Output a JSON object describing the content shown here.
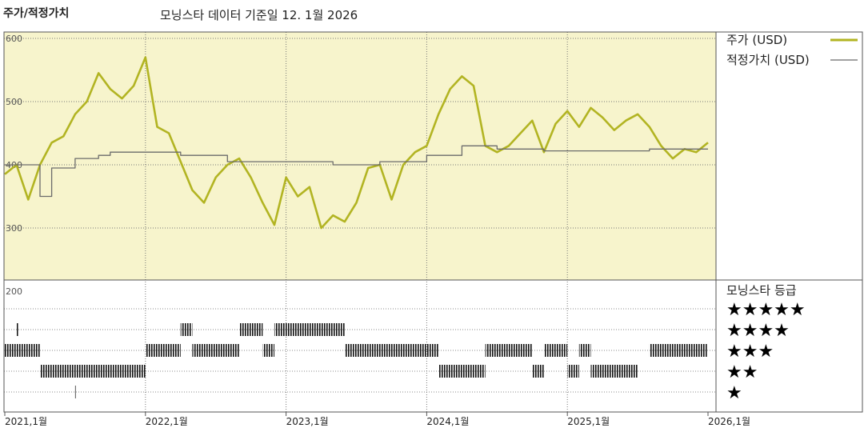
{
  "title": "주가/적정가치",
  "subtitle": "모닝스타 데이터 기준일 12. 1월 2026",
  "chart_data": {
    "type": "line",
    "y_ticks": [
      "600",
      "500",
      "400",
      "300",
      "200"
    ],
    "ylim": [
      200,
      600
    ],
    "x_ticks": [
      "2021,1월",
      "2022,1월",
      "2023,1월",
      "2024,1월",
      "2025,1월",
      "2026,1월"
    ],
    "xlim": [
      "2021-01",
      "2026-01"
    ],
    "grid": true,
    "legend_position": "right",
    "series": [
      {
        "name": "주가 (USD)",
        "color": "#b2b422",
        "points": [
          [
            "2021-01",
            385
          ],
          [
            "2021-02",
            400
          ],
          [
            "2021-03",
            345
          ],
          [
            "2021-04",
            400
          ],
          [
            "2021-05",
            435
          ],
          [
            "2021-06",
            445
          ],
          [
            "2021-07",
            480
          ],
          [
            "2021-08",
            500
          ],
          [
            "2021-09",
            545
          ],
          [
            "2021-10",
            520
          ],
          [
            "2021-11",
            505
          ],
          [
            "2021-12",
            525
          ],
          [
            "2022-01",
            570
          ],
          [
            "2022-02",
            460
          ],
          [
            "2022-03",
            450
          ],
          [
            "2022-04",
            405
          ],
          [
            "2022-05",
            360
          ],
          [
            "2022-06",
            340
          ],
          [
            "2022-07",
            380
          ],
          [
            "2022-08",
            400
          ],
          [
            "2022-09",
            410
          ],
          [
            "2022-10",
            380
          ],
          [
            "2022-11",
            340
          ],
          [
            "2022-12",
            305
          ],
          [
            "2023-01",
            380
          ],
          [
            "2023-02",
            350
          ],
          [
            "2023-03",
            365
          ],
          [
            "2023-04",
            300
          ],
          [
            "2023-05",
            320
          ],
          [
            "2023-06",
            310
          ],
          [
            "2023-07",
            340
          ],
          [
            "2023-08",
            395
          ],
          [
            "2023-09",
            400
          ],
          [
            "2023-10",
            345
          ],
          [
            "2023-11",
            400
          ],
          [
            "2023-12",
            420
          ],
          [
            "2024-01",
            430
          ],
          [
            "2024-02",
            480
          ],
          [
            "2024-03",
            520
          ],
          [
            "2024-04",
            540
          ],
          [
            "2024-05",
            525
          ],
          [
            "2024-06",
            430
          ],
          [
            "2024-07",
            420
          ],
          [
            "2024-08",
            430
          ],
          [
            "2024-09",
            450
          ],
          [
            "2024-10",
            470
          ],
          [
            "2024-11",
            420
          ],
          [
            "2024-12",
            465
          ],
          [
            "2025-01",
            485
          ],
          [
            "2025-02",
            460
          ],
          [
            "2025-03",
            490
          ],
          [
            "2025-04",
            475
          ],
          [
            "2025-05",
            455
          ],
          [
            "2025-06",
            470
          ],
          [
            "2025-07",
            480
          ],
          [
            "2025-08",
            460
          ],
          [
            "2025-09",
            430
          ],
          [
            "2025-10",
            410
          ],
          [
            "2025-11",
            425
          ],
          [
            "2025-12",
            420
          ],
          [
            "2026-01",
            435
          ]
        ]
      },
      {
        "name": "적정가치 (USD)",
        "color": "#6b6b6b",
        "points": [
          [
            "2021-01",
            400
          ],
          [
            "2021-04",
            400
          ],
          [
            "2021-04",
            350
          ],
          [
            "2021-05",
            350
          ],
          [
            "2021-05",
            395
          ],
          [
            "2021-07",
            395
          ],
          [
            "2021-07",
            410
          ],
          [
            "2021-09",
            410
          ],
          [
            "2021-09",
            415
          ],
          [
            "2021-10",
            415
          ],
          [
            "2021-10",
            420
          ],
          [
            "2022-04",
            420
          ],
          [
            "2022-04",
            415
          ],
          [
            "2022-08",
            415
          ],
          [
            "2022-08",
            405
          ],
          [
            "2023-05",
            405
          ],
          [
            "2023-05",
            400
          ],
          [
            "2023-09",
            400
          ],
          [
            "2023-09",
            405
          ],
          [
            "2024-01",
            405
          ],
          [
            "2024-01",
            415
          ],
          [
            "2024-04",
            415
          ],
          [
            "2024-04",
            430
          ],
          [
            "2024-07",
            430
          ],
          [
            "2024-07",
            425
          ],
          [
            "2024-11",
            425
          ],
          [
            "2024-11",
            422
          ],
          [
            "2025-08",
            422
          ],
          [
            "2025-08",
            425
          ],
          [
            "2026-01",
            425
          ]
        ]
      }
    ],
    "rating_panel": {
      "title": "모닝스타 등급",
      "levels": [
        "★★★★★",
        "★★★★",
        "★★★",
        "★★",
        "★"
      ],
      "periods": [
        {
          "rating": 3,
          "start": "2021-01",
          "end": "2021-04"
        },
        {
          "rating": 4,
          "start": "2021-02",
          "end": "2021-02"
        },
        {
          "rating": 2,
          "start": "2021-04",
          "end": "2022-01"
        },
        {
          "rating": 1,
          "start": "2021-07",
          "end": "2021-07"
        },
        {
          "rating": 3,
          "start": "2022-01",
          "end": "2022-04"
        },
        {
          "rating": 4,
          "start": "2022-04",
          "end": "2022-05"
        },
        {
          "rating": 3,
          "start": "2022-05",
          "end": "2022-09"
        },
        {
          "rating": 4,
          "start": "2022-09",
          "end": "2022-11"
        },
        {
          "rating": 3,
          "start": "2022-11",
          "end": "2022-12"
        },
        {
          "rating": 4,
          "start": "2022-12",
          "end": "2023-06"
        },
        {
          "rating": 3,
          "start": "2023-06",
          "end": "2024-02"
        },
        {
          "rating": 2,
          "start": "2024-02",
          "end": "2024-06"
        },
        {
          "rating": 3,
          "start": "2024-06",
          "end": "2024-10"
        },
        {
          "rating": 2,
          "start": "2024-10",
          "end": "2024-11"
        },
        {
          "rating": 3,
          "start": "2024-11",
          "end": "2025-01"
        },
        {
          "rating": 2,
          "start": "2025-01",
          "end": "2025-02"
        },
        {
          "rating": 3,
          "start": "2025-02",
          "end": "2025-03"
        },
        {
          "rating": 2,
          "start": "2025-03",
          "end": "2025-07"
        },
        {
          "rating": 3,
          "start": "2025-08",
          "end": "2026-01"
        }
      ]
    }
  }
}
